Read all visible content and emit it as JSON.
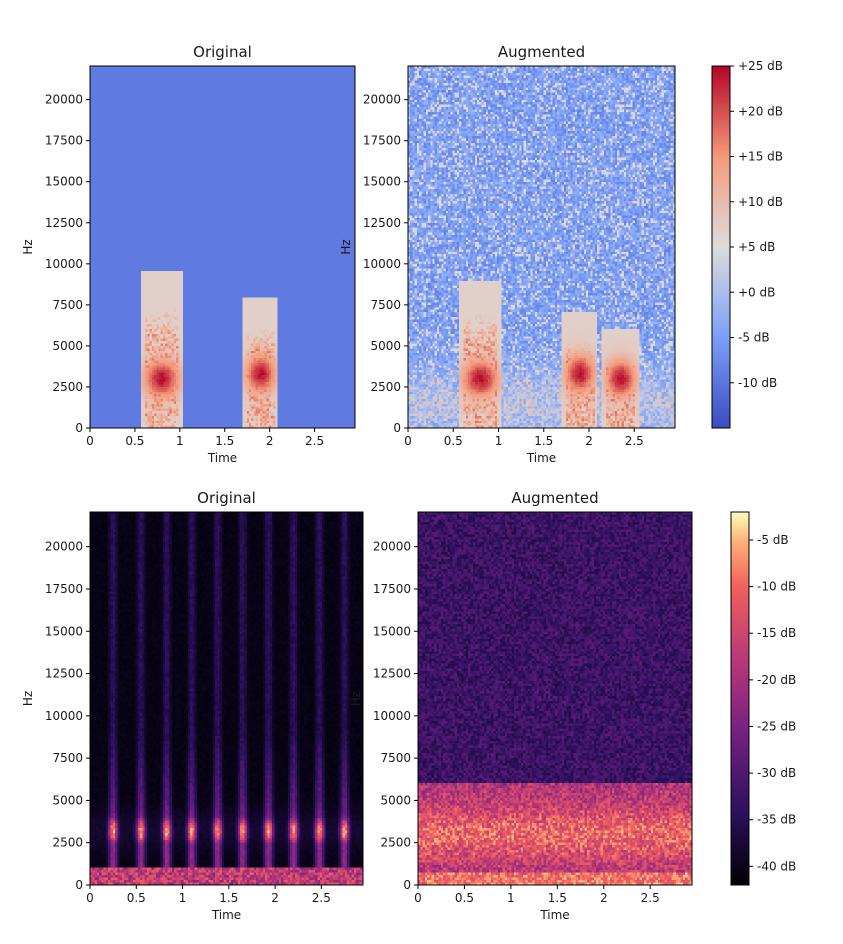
{
  "chart_data": [
    {
      "type": "heatmap",
      "title": "Original",
      "xlabel": "Time",
      "ylabel": "Hz",
      "xlim": [
        0,
        2.95
      ],
      "ylim": [
        0,
        22050
      ],
      "xticks": [
        "0",
        "0.5",
        "1",
        "1.5",
        "2",
        "2.5"
      ],
      "yticks": [
        "0",
        "2500",
        "5000",
        "7500",
        "10000",
        "12500",
        "15000",
        "17500",
        "20000"
      ],
      "colormap": "coolwarm",
      "events": [
        {
          "t_start": 0.62,
          "t_end": 0.98,
          "f_max": 9500,
          "peak_f": 3000
        },
        {
          "t_start": 1.75,
          "t_end": 2.05,
          "f_max": 8000,
          "peak_f": 3300
        }
      ]
    },
    {
      "type": "heatmap",
      "title": "Augmented",
      "xlabel": "Time",
      "ylabel": "Hz",
      "xlim": [
        0,
        2.95
      ],
      "ylim": [
        0,
        22050
      ],
      "xticks": [
        "0",
        "0.5",
        "1",
        "1.5",
        "2",
        "2.5"
      ],
      "yticks": [
        "0",
        "2500",
        "5000",
        "7500",
        "10000",
        "12500",
        "15000",
        "17500",
        "20000"
      ],
      "colormap": "coolwarm",
      "events": [
        {
          "t_start": 0.62,
          "t_end": 0.98,
          "f_max": 9000,
          "peak_f": 3000
        },
        {
          "t_start": 1.75,
          "t_end": 2.05,
          "f_max": 7000,
          "peak_f": 3300
        },
        {
          "t_start": 2.2,
          "t_end": 2.5,
          "f_max": 6000,
          "peak_f": 3000
        }
      ]
    },
    {
      "type": "heatmap",
      "title": "Original",
      "xlabel": "Time",
      "ylabel": "Hz",
      "xlim": [
        0,
        2.95
      ],
      "ylim": [
        0,
        22050
      ],
      "xticks": [
        "0",
        "0.5",
        "1",
        "1.5",
        "2",
        "2.5"
      ],
      "yticks": [
        "0",
        "2500",
        "5000",
        "7500",
        "10000",
        "12500",
        "15000",
        "17500",
        "20000"
      ],
      "colormap": "magma",
      "pulse_times": [
        0.25,
        0.55,
        0.83,
        1.1,
        1.38,
        1.65,
        1.93,
        2.2,
        2.48,
        2.75
      ],
      "band_hz": [
        2500,
        4000
      ]
    },
    {
      "type": "heatmap",
      "title": "Augmented",
      "xlabel": "Time",
      "ylabel": "Hz",
      "xlim": [
        0,
        2.95
      ],
      "ylim": [
        0,
        22050
      ],
      "xticks": [
        "0",
        "0.5",
        "1",
        "1.5",
        "2",
        "2.5"
      ],
      "yticks": [
        "0",
        "2500",
        "5000",
        "7500",
        "10000",
        "12500",
        "15000",
        "17500",
        "20000"
      ],
      "colormap": "magma",
      "band_hz": [
        0,
        6000
      ]
    }
  ],
  "colorbars": [
    {
      "colormap": "coolwarm",
      "labels": [
        "+25 dB",
        "+20 dB",
        "+15 dB",
        "+10 dB",
        "+5 dB",
        "+0 dB",
        "-5 dB",
        "-10 dB"
      ],
      "range": [
        -15,
        25
      ]
    },
    {
      "colormap": "magma",
      "labels": [
        "-5 dB",
        "-10 dB",
        "-15 dB",
        "-20 dB",
        "-25 dB",
        "-30 dB",
        "-35 dB",
        "-40 dB"
      ],
      "range": [
        -42,
        -2
      ]
    }
  ]
}
